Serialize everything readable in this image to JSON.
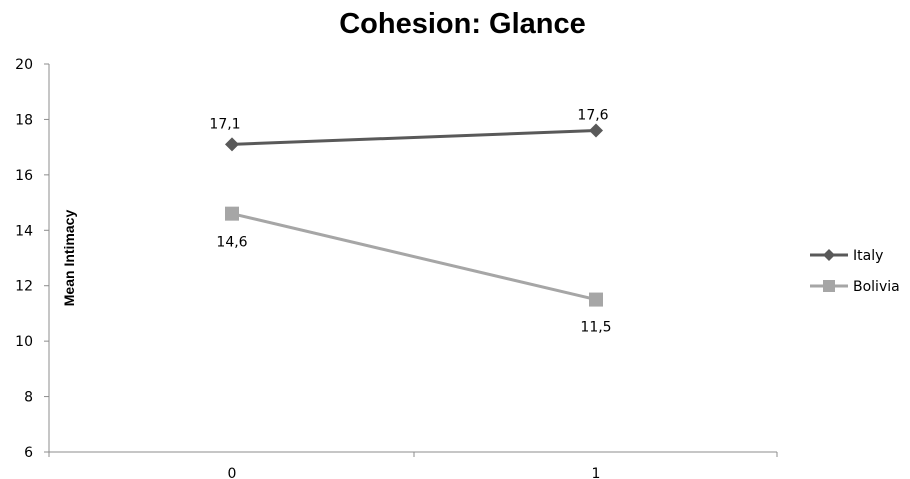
{
  "chart_data": {
    "type": "line",
    "title": "Cohesion: Glance",
    "xlabel": "",
    "ylabel": "Mean Intimacy",
    "categories": [
      "0",
      "1"
    ],
    "ylim": [
      6,
      20
    ],
    "yticks": [
      6,
      8,
      10,
      12,
      14,
      16,
      18,
      20
    ],
    "grid": false,
    "legend": "right",
    "series": [
      {
        "name": "Italy",
        "values": [
          17.1,
          17.6
        ],
        "labels": [
          "17,1",
          "17,6"
        ],
        "color": "#595959",
        "marker": "diamond"
      },
      {
        "name": "Bolivia",
        "values": [
          14.6,
          11.5
        ],
        "labels": [
          "14,6",
          "11,5"
        ],
        "color": "#a6a6a6",
        "marker": "square"
      }
    ]
  }
}
